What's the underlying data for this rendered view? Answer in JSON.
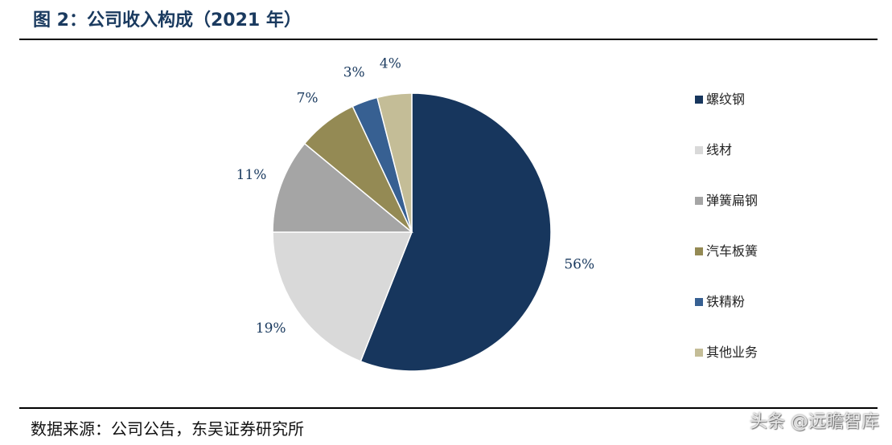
{
  "header": {
    "title": "图 2：公司收入构成（2021 年）"
  },
  "chart_data": {
    "type": "pie",
    "title": "公司收入构成（2021 年）",
    "start_angle_deg": 0,
    "direction": "clockwise",
    "legend_position": "right",
    "slices": [
      {
        "label": "螺纹钢",
        "value": 56,
        "value_label": "56%",
        "color": "#17365d"
      },
      {
        "label": "线材",
        "value": 19,
        "value_label": "19%",
        "color": "#d9d9d9"
      },
      {
        "label": "弹簧扁钢",
        "value": 11,
        "value_label": "11%",
        "color": "#a5a5a5"
      },
      {
        "label": "汽车板簧",
        "value": 7,
        "value_label": "7%",
        "color": "#948a54"
      },
      {
        "label": "铁精粉",
        "value": 3,
        "value_label": "3%",
        "color": "#376092"
      },
      {
        "label": "其他业务",
        "value": 4,
        "value_label": "4%",
        "color": "#c4bd97"
      }
    ]
  },
  "footer": {
    "source": "数据来源：公司公告，东吴证券研究所",
    "watermark": "头条 @远瞻智库"
  }
}
